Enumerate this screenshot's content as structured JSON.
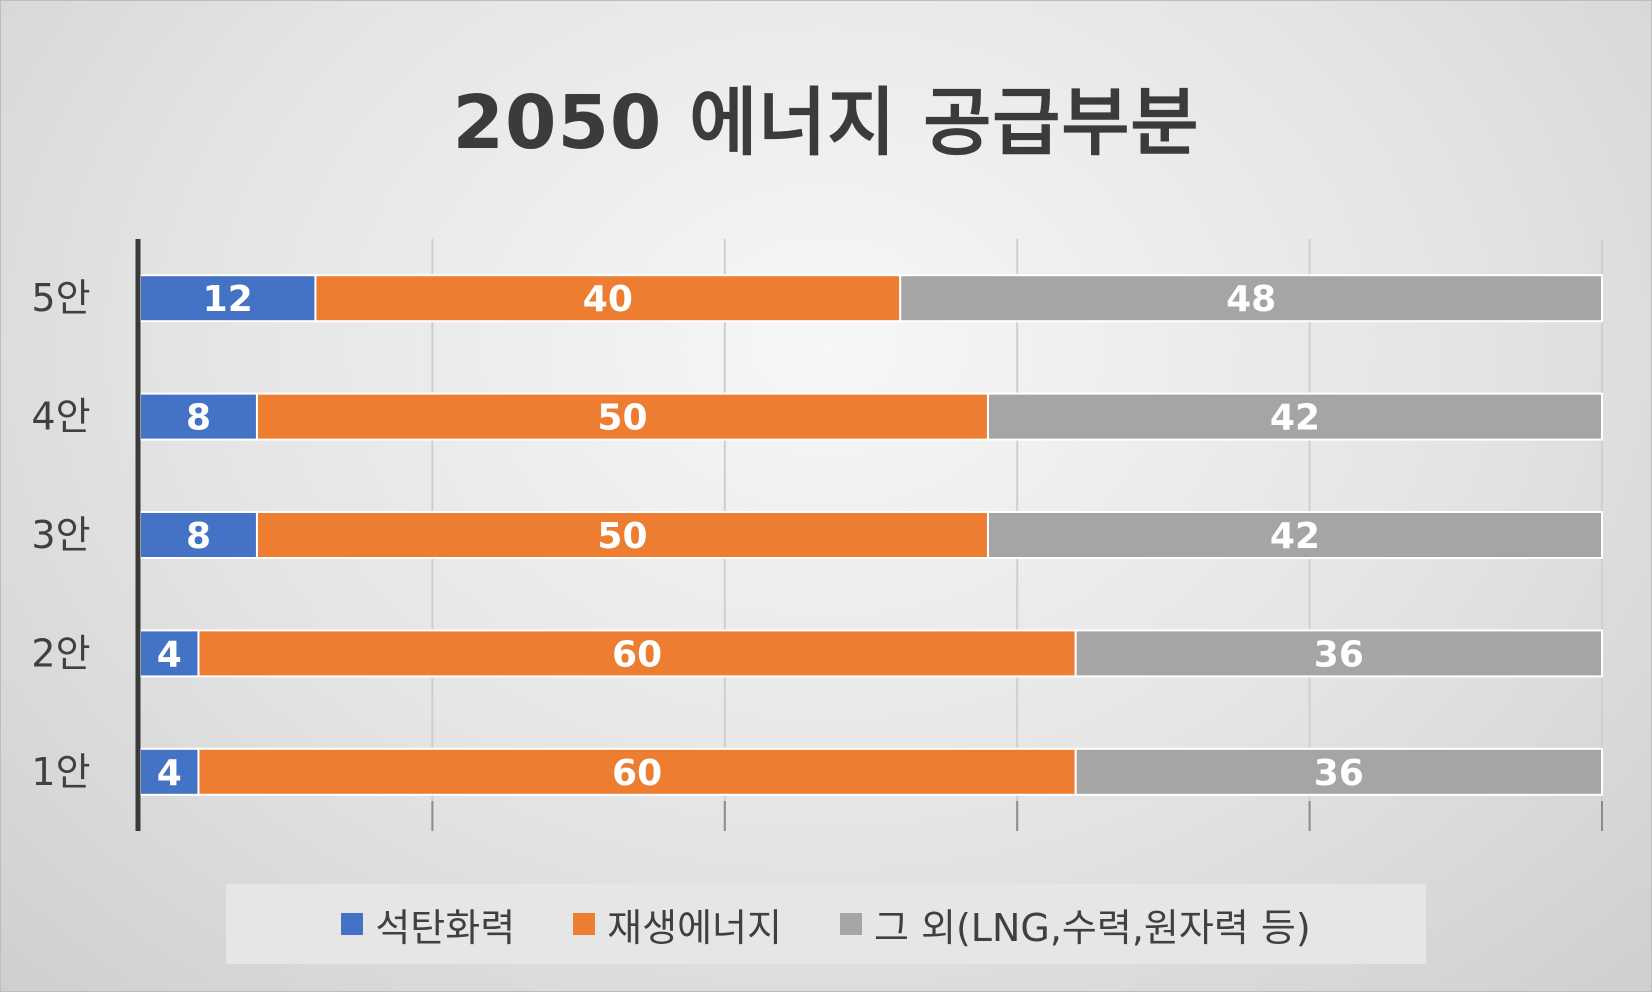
{
  "chart_data": {
    "type": "bar",
    "orientation": "horizontal",
    "stacked": true,
    "title": "2050 에너지 공급부분",
    "categories": [
      "1안",
      "2안",
      "3안",
      "4안",
      "5안"
    ],
    "series": [
      {
        "name": "석탄화력",
        "color": "#4472c4",
        "values": [
          4,
          4,
          8,
          8,
          12
        ]
      },
      {
        "name": "재생에너지",
        "color": "#ed7d31",
        "values": [
          60,
          60,
          50,
          50,
          40
        ]
      },
      {
        "name": "그 외(LNG,수력,원자력 등)",
        "color": "#a5a5a5",
        "values": [
          36,
          36,
          42,
          42,
          48
        ]
      }
    ],
    "xlim": [
      0,
      100
    ],
    "grid": true,
    "legend_position": "bottom",
    "data_labels": true
  }
}
